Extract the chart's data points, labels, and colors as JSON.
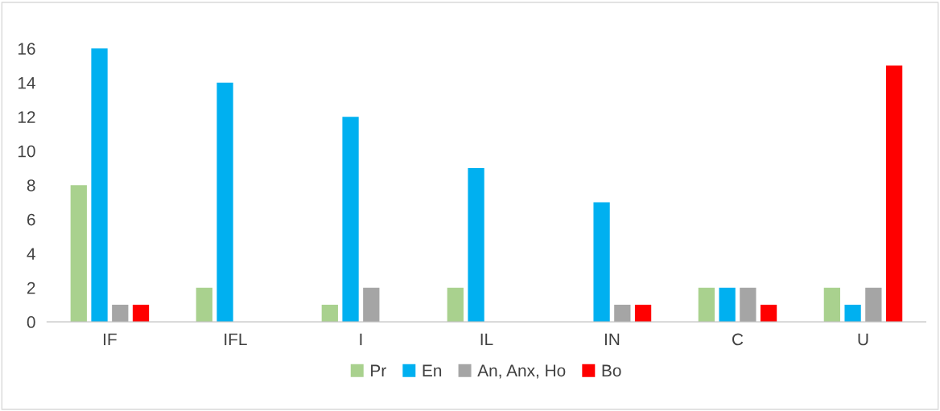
{
  "chart_data": {
    "type": "bar",
    "categories": [
      "IF",
      "IFL",
      "I",
      "IL",
      "IN",
      "C",
      "U"
    ],
    "series": [
      {
        "name": "Pr",
        "color": "#a9d18e",
        "values": [
          8,
          2,
          1,
          2,
          0,
          2,
          2
        ]
      },
      {
        "name": "En",
        "color": "#00b0f0",
        "values": [
          16,
          14,
          12,
          9,
          7,
          2,
          1
        ]
      },
      {
        "name": "An, Anx, Ho",
        "color": "#a5a5a5",
        "values": [
          1,
          0,
          2,
          0,
          1,
          2,
          2
        ]
      },
      {
        "name": "Bo",
        "color": "#ff0000",
        "values": [
          1,
          0,
          0,
          0,
          1,
          1,
          15
        ]
      }
    ],
    "ylim": [
      0,
      16
    ],
    "yticks": [
      0,
      2,
      4,
      6,
      8,
      10,
      12,
      14,
      16
    ],
    "grid": false,
    "legend": "bottom"
  }
}
